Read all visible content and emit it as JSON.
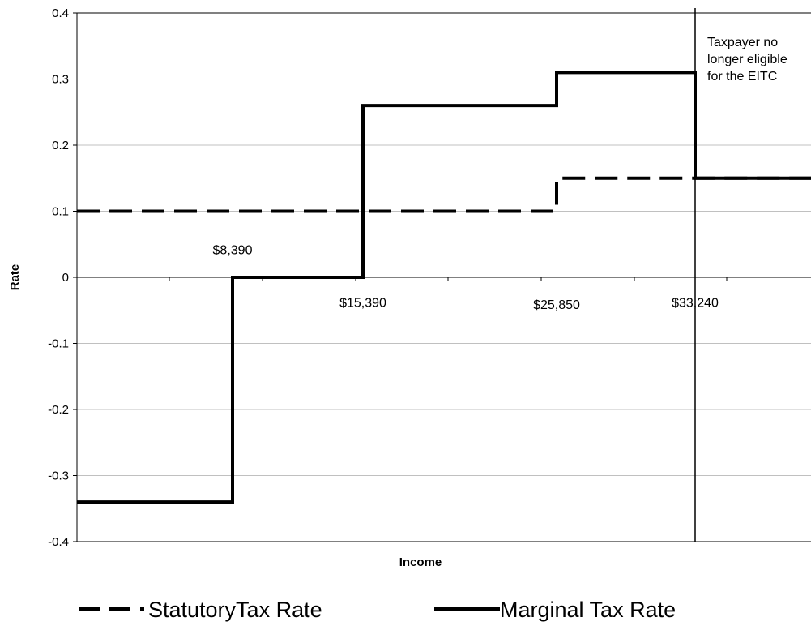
{
  "chart_data": {
    "type": "line",
    "title": "",
    "xlabel": "Income",
    "ylabel": "Rate",
    "ylim": [
      -0.4,
      0.4
    ],
    "yticks": [
      0.4,
      0.3,
      0.2,
      0.1,
      0,
      -0.1,
      -0.2,
      -0.3,
      -0.4
    ],
    "ytick_labels": [
      "0.4",
      "0.3",
      "0.2",
      "0.1",
      "0",
      "-0.1",
      "-0.2",
      "-0.3",
      "-0.4"
    ],
    "xlim": [
      0,
      38000
    ],
    "grid": true,
    "series": [
      {
        "name": "StatutoryTax Rate",
        "style": "dashed",
        "x": [
          0,
          25850,
          25850,
          38000
        ],
        "y": [
          0.1,
          0.1,
          0.15,
          0.15
        ]
      },
      {
        "name": "Marginal Tax Rate",
        "style": "solid",
        "x": [
          0,
          8390,
          8390,
          15390,
          15390,
          25850,
          25850,
          33240,
          33240,
          38000
        ],
        "y": [
          -0.34,
          -0.34,
          0,
          0,
          0.26,
          0.26,
          0.31,
          0.31,
          0.15,
          0.15
        ]
      }
    ],
    "vline": {
      "x": 33240
    },
    "annotations": [
      {
        "text": "$8,390",
        "x": 8390,
        "y": 0.035
      },
      {
        "text": "$15,390",
        "x": 15390,
        "y": -0.045
      },
      {
        "text": "$25,850",
        "x": 25850,
        "y": -0.048
      },
      {
        "text": "$33,240",
        "x": 33240,
        "y": -0.045
      }
    ],
    "note": [
      "Taxpayer no",
      "longer eligible",
      "for the EITC"
    ],
    "legend_position": "bottom",
    "colors": {
      "line": "#000000",
      "grid": "#c0c0c0"
    }
  }
}
